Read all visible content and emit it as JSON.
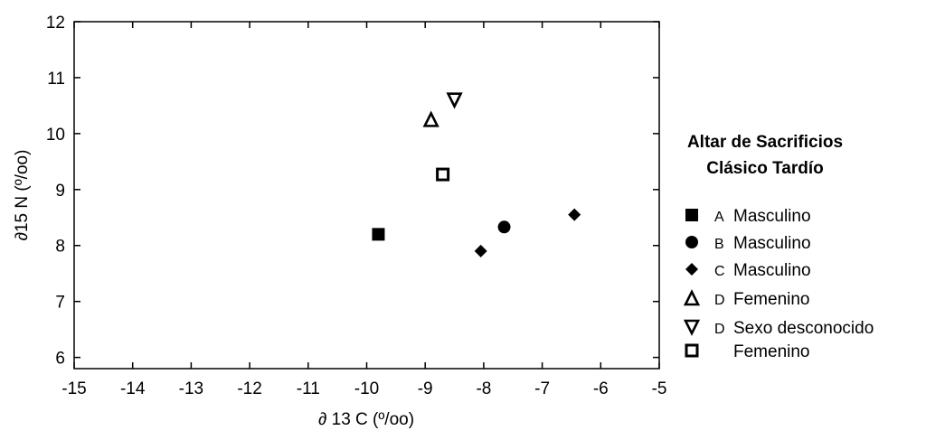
{
  "chart_data": {
    "type": "scatter",
    "xlabel": "∂ 13 C (º/oo)",
    "ylabel": "∂15 N (º/oo)",
    "xlim": [
      -15,
      -5
    ],
    "ylim": [
      5.8,
      12
    ],
    "xticks": [
      -15,
      -14,
      -13,
      -12,
      -11,
      -10,
      -9,
      -8,
      -7,
      -6,
      -5
    ],
    "yticks": [
      6,
      7,
      8,
      9,
      10,
      11,
      12
    ],
    "grid": false,
    "legend_title_lines": [
      "Altar de Sacrificios",
      "Clásico Tardío"
    ],
    "legend_position": "right",
    "series": [
      {
        "letter": "A",
        "name": "Masculino",
        "marker": "square",
        "x": [
          -9.8
        ],
        "y": [
          8.2
        ]
      },
      {
        "letter": "B",
        "name": "Masculino",
        "marker": "circle",
        "x": [
          -7.65
        ],
        "y": [
          8.33
        ]
      },
      {
        "letter": "C",
        "name": "Masculino",
        "marker": "diamond",
        "x": [
          -8.05,
          -6.45
        ],
        "y": [
          7.9,
          8.55
        ]
      },
      {
        "letter": "D",
        "name": "Femenino",
        "marker": "triangle-up",
        "x": [
          -8.9
        ],
        "y": [
          10.25
        ]
      },
      {
        "letter": "D",
        "name": "Sexo desconocido",
        "marker": "triangle-down",
        "x": [
          -8.5
        ],
        "y": [
          10.6
        ]
      },
      {
        "letter": "",
        "name": "Femenino",
        "marker": "hollow-square",
        "x": [
          -8.7
        ],
        "y": [
          9.27
        ]
      }
    ]
  }
}
